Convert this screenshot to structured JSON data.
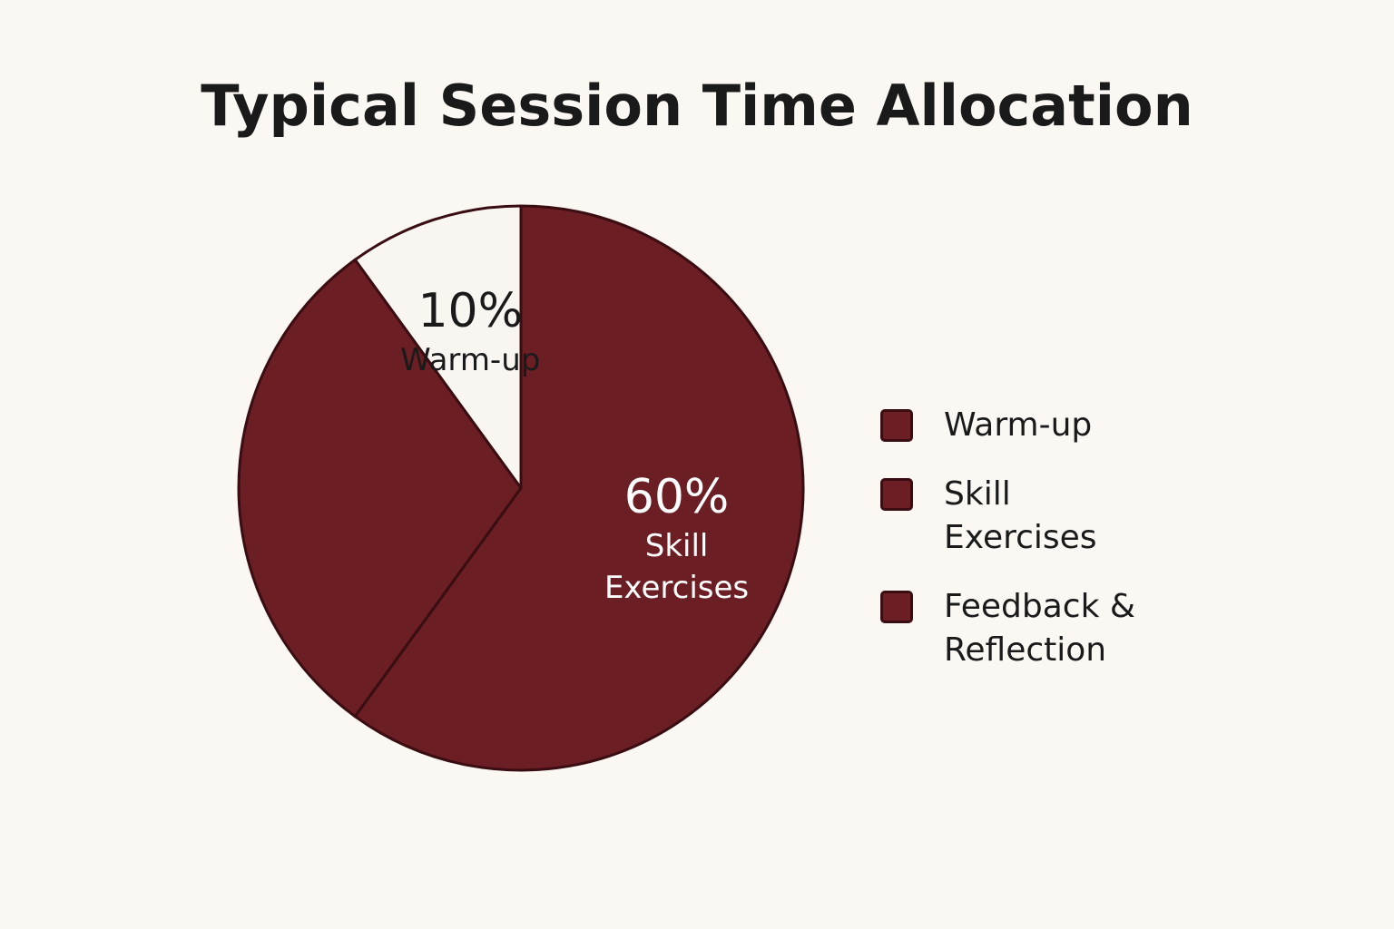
{
  "chart_data": {
    "type": "pie",
    "title": "Typical Session Time Allocation",
    "categories": [
      "Warm-up",
      "Skill Exercises",
      "Feedback & Reflection"
    ],
    "values": [
      10,
      60,
      30
    ],
    "value_labels": [
      "10%",
      "60%",
      null
    ],
    "colors": [
      "#f9f6f1",
      "#6b1e24",
      "#6b1e24"
    ],
    "legend_color": "#6b1e24",
    "legend": "right"
  }
}
